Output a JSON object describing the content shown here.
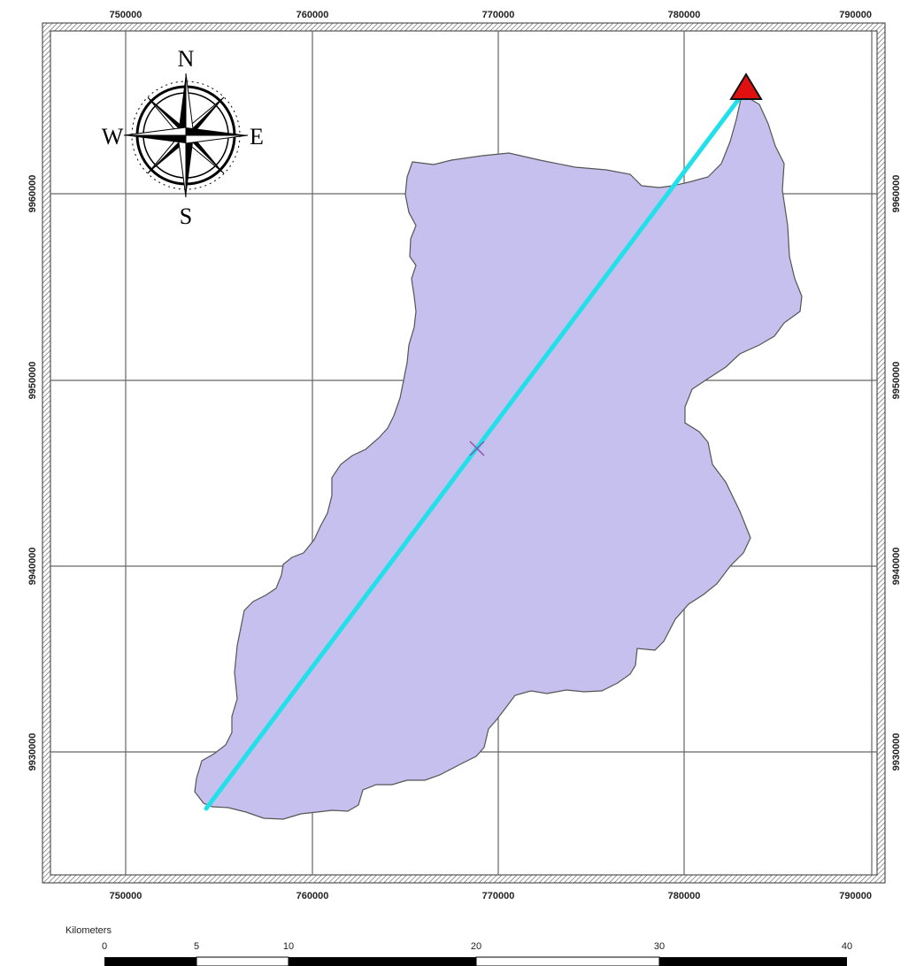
{
  "map": {
    "grid": {
      "x_ticks": [
        "750000",
        "760000",
        "770000",
        "780000",
        "790000"
      ],
      "y_ticks": [
        "9960000",
        "9950000",
        "9940000",
        "9930000"
      ]
    },
    "compass": {
      "north": "N",
      "south": "S",
      "east": "E",
      "west": "W"
    },
    "colors": {
      "watershed_fill": "#c5c0ee",
      "watershed_stroke": "#555555",
      "main_channel": "#22e0ea",
      "outlet_marker": "#e01010",
      "centroid_marker": "#8a55b0",
      "grid_line": "#666666"
    },
    "features": {
      "watershed": "watershed-polygon",
      "main_channel": "main-channel-line",
      "outlet": "outlet-triangle",
      "centroid": "centroid-cross"
    }
  },
  "scalebar": {
    "unit": "Kilometers",
    "labels": [
      "0",
      "5",
      "10",
      "20",
      "30",
      "40"
    ]
  }
}
